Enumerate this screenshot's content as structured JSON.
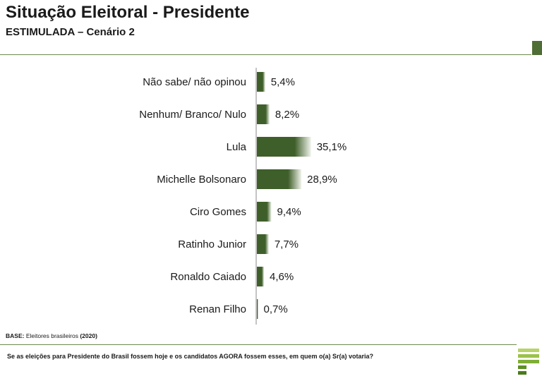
{
  "header": {
    "title": "Situação Eleitoral - Presidente",
    "subtitle": "ESTIMULADA – Cenário 2"
  },
  "colors": {
    "bar_dark": "#3f5f2a",
    "bar_light": "#f1f5ec",
    "rule": "#6d8a4c",
    "marker": "#4f6e35"
  },
  "chart_data": {
    "type": "bar",
    "orientation": "horizontal",
    "categories": [
      "Não sabe/ não opinou",
      "Nenhum/ Branco/ Nulo",
      "Lula",
      "Michelle Bolsonaro",
      "Ciro Gomes",
      "Ratinho Junior",
      "Ronaldo Caiado",
      "Renan Filho"
    ],
    "values": [
      5.4,
      8.2,
      35.1,
      28.9,
      9.4,
      7.7,
      4.6,
      0.7
    ],
    "value_labels": [
      "5,4%",
      "8,2%",
      "35,1%",
      "28,9%",
      "9,4%",
      "7,7%",
      "4,6%",
      "0,7%"
    ],
    "unit": "%",
    "xlim": [
      0,
      40
    ],
    "grid": false,
    "legend": "none"
  },
  "footer": {
    "base_label": "BASE:",
    "base_text": " Eleitores brasileiros ",
    "base_year": "(2020)",
    "question": "Se as eleições para Presidente do Brasil fossem hoje e os candidatos AGORA fossem esses, em quem o(a) Sr(a) votaria?"
  },
  "logo": {
    "icon": "brand-stripes-icon"
  }
}
